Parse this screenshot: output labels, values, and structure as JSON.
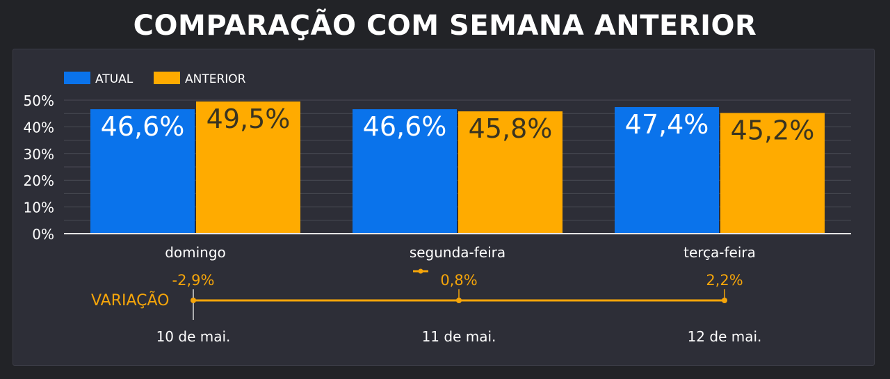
{
  "page": {
    "title": "COMPARAÇÃO COM SEMANA ANTERIOR"
  },
  "colors": {
    "atual": "#0a73eb",
    "anterior": "#ffab00",
    "variation": "#f5a50a",
    "text": "#ffffff",
    "grid": "#4a4b55"
  },
  "chart_data": [
    {
      "type": "bar",
      "categories": [
        "domingo",
        "segunda-feira",
        "terça-feira"
      ],
      "series": [
        {
          "name": "ATUAL",
          "values": [
            46.6,
            46.6,
            47.4
          ],
          "labels": [
            "46,6%",
            "46,6%",
            "47,4%"
          ]
        },
        {
          "name": "ANTERIOR",
          "values": [
            49.5,
            45.8,
            45.2
          ],
          "labels": [
            "49,5%",
            "45,8%",
            "45,2%"
          ]
        }
      ],
      "ylim": [
        0,
        50
      ],
      "y_ticks": [
        "0%",
        "10%",
        "20%",
        "30%",
        "40%",
        "50%"
      ],
      "legend": "top-left",
      "grid": true
    },
    {
      "type": "line",
      "series": [
        {
          "name": "VARIAÇÃO",
          "values": [
            -2.9,
            0.8,
            2.2
          ],
          "labels": [
            "-2,9%",
            "0,8%",
            "2,2%"
          ]
        }
      ],
      "x": [
        "10 de mai.",
        "11 de mai.",
        "12 de mai."
      ]
    }
  ]
}
